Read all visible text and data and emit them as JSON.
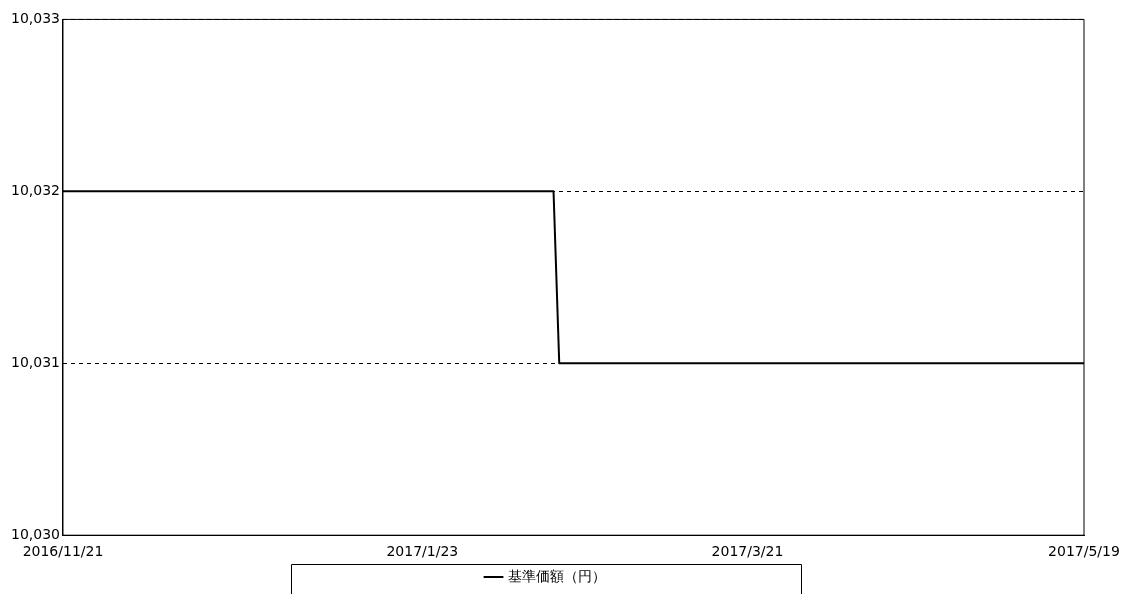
{
  "chart_data": {
    "type": "line",
    "x": [
      "2016-11-21",
      "2017-02-15",
      "2017-02-16",
      "2017-05-19"
    ],
    "series": [
      {
        "name": "基準価額（円）",
        "color": "#000000",
        "values": [
          10032,
          10032,
          10031,
          10031
        ]
      }
    ],
    "xlim": [
      "2016-11-21",
      "2017-05-19"
    ],
    "xticks": [
      {
        "value": "2016-11-21",
        "label": "2016/11/21"
      },
      {
        "value": "2017-01-23",
        "label": "2017/1/23"
      },
      {
        "value": "2017-03-21",
        "label": "2017/3/21"
      },
      {
        "value": "2017-05-19",
        "label": "2017/5/19"
      }
    ],
    "ylim": [
      10030,
      10033
    ],
    "yticks": [
      {
        "value": 10030,
        "label": "10,030"
      },
      {
        "value": 10031,
        "label": "10,031"
      },
      {
        "value": 10032,
        "label": "10,032"
      },
      {
        "value": 10033,
        "label": "10,033"
      }
    ],
    "grid": "y",
    "legend": "bottom",
    "marker": "none",
    "line_style": "solid"
  }
}
